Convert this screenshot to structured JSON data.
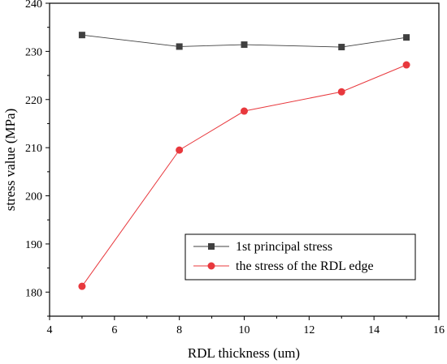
{
  "chart_data": {
    "type": "line",
    "xlabel": "RDL thickness (um)",
    "ylabel": "stress value (MPa)",
    "xlim": [
      4,
      16
    ],
    "ylim": [
      175,
      240
    ],
    "xticks": [
      4,
      6,
      8,
      10,
      12,
      14,
      16
    ],
    "yticks": [
      180,
      190,
      200,
      210,
      220,
      230,
      240
    ],
    "grid": false,
    "legend_position": "bottom-right",
    "x": [
      5,
      8,
      10,
      13,
      15
    ],
    "series": [
      {
        "name": "1st principal stress",
        "values": [
          233.4,
          231.0,
          231.4,
          230.9,
          232.9
        ],
        "color": "#404040",
        "marker": "square"
      },
      {
        "name": "the stress of the RDL edge",
        "values": [
          181.2,
          209.5,
          217.6,
          221.6,
          227.2
        ],
        "color": "#e8383d",
        "marker": "circle"
      }
    ]
  }
}
